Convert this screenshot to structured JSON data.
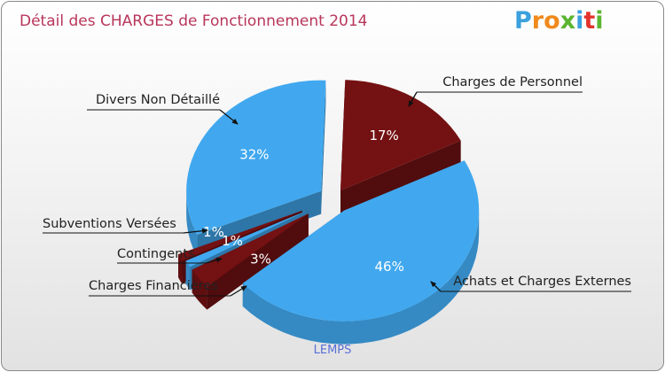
{
  "title": "Détail des CHARGES de Fonctionnement 2014",
  "logo": {
    "letters": [
      "P",
      "r",
      "o",
      "x",
      "i",
      "t",
      "i"
    ]
  },
  "footer": "LEMPS",
  "colors": {
    "blue": "#41a8ef",
    "blue_dark": "#2f8fd8",
    "red": "#741112",
    "red_dark": "#520b0c",
    "title": "#b8365a"
  },
  "chart_data": {
    "type": "pie",
    "title": "Détail des CHARGES de Fonctionnement 2014",
    "unit": "%",
    "slices": [
      {
        "label": "Charges de Personnel",
        "value": 17,
        "display": "17%",
        "color": "#741112"
      },
      {
        "label": "Achats et Charges Externes",
        "value": 46,
        "display": "46%",
        "color": "#41a8ef"
      },
      {
        "label": "Charges Financières",
        "value": 3,
        "display": "3%",
        "color": "#741112"
      },
      {
        "label": "Contingents",
        "value": 1,
        "display": "1%",
        "color": "#41a8ef"
      },
      {
        "label": "Subventions Versées",
        "value": 1,
        "display": "1%",
        "color": "#741112"
      },
      {
        "label": "Divers Non Détaillé",
        "value": 32,
        "display": "32%",
        "color": "#41a8ef"
      }
    ]
  }
}
